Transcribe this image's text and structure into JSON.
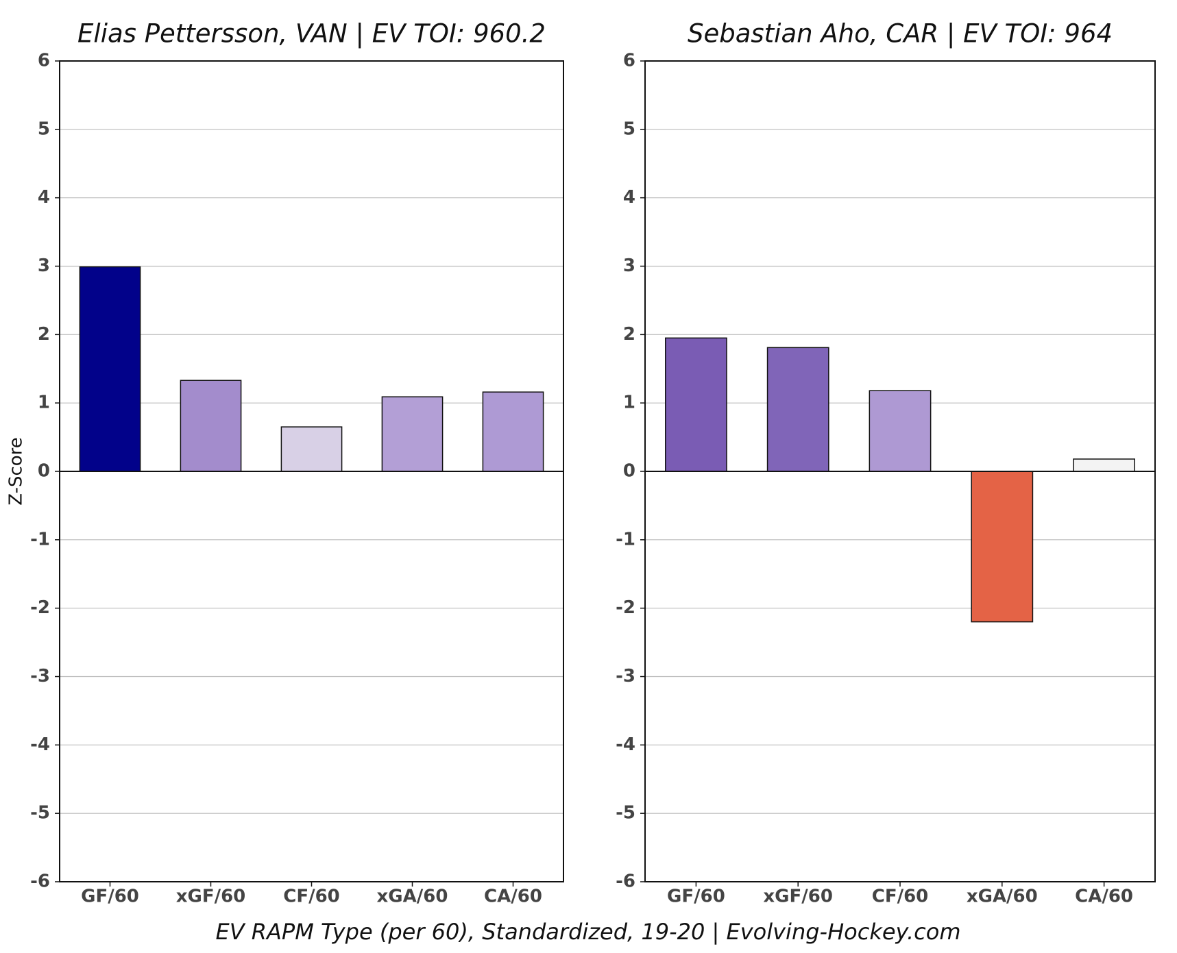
{
  "chart_data": [
    {
      "type": "bar",
      "title": "Elias Pettersson, VAN  |  EV TOI: 960.2",
      "ylabel": "Z-Score",
      "categories": [
        "GF/60",
        "xGF/60",
        "CF/60",
        "xGA/60",
        "CA/60"
      ],
      "values": [
        2.99,
        1.33,
        0.65,
        1.09,
        1.16
      ],
      "colors": [
        "#02028a",
        "#a38ccc",
        "#d8d0e6",
        "#b39fd6",
        "#ae9ad4"
      ],
      "ylim": [
        -6,
        6
      ],
      "yticks": [
        -6,
        -5,
        -4,
        -3,
        -2,
        -1,
        0,
        1,
        2,
        3,
        4,
        5,
        6
      ],
      "grid": true
    },
    {
      "type": "bar",
      "title": "Sebastian Aho, CAR  |  EV TOI: 964",
      "categories": [
        "GF/60",
        "xGF/60",
        "CF/60",
        "xGA/60",
        "CA/60"
      ],
      "values": [
        1.95,
        1.81,
        1.18,
        -2.2,
        0.18
      ],
      "colors": [
        "#7a5cb4",
        "#8065b8",
        "#ae99d3",
        "#e46346",
        "#f3f3f3"
      ],
      "ylim": [
        -6,
        6
      ],
      "yticks": [
        -6,
        -5,
        -4,
        -3,
        -2,
        -1,
        0,
        1,
        2,
        3,
        4,
        5,
        6
      ],
      "grid": true
    }
  ],
  "footer": "EV RAPM Type (per 60), Standardized, 19-20    |    Evolving-Hockey.com"
}
